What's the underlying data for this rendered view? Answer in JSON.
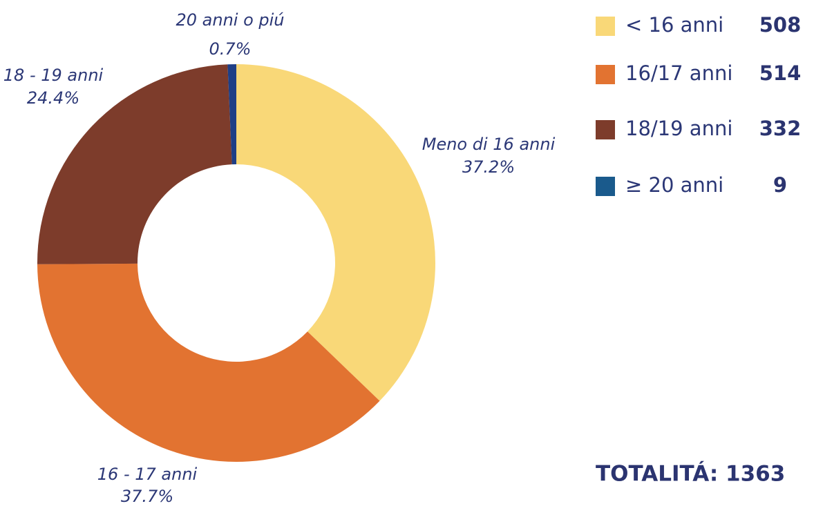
{
  "chart_data": {
    "type": "pie",
    "donut": true,
    "categories": [
      "Meno di 16 anni",
      "16 - 17 anni",
      "18 - 19 anni",
      "20 anni o piú"
    ],
    "values": [
      37.2,
      37.7,
      24.4,
      0.7
    ],
    "value_labels": [
      "37.2%",
      "37.7%",
      "24.4%",
      "0.7%"
    ],
    "colors": [
      "#f9d878",
      "#e27331",
      "#7d3c2b",
      "#1f3f86"
    ],
    "legend": [
      {
        "name": "< 16 anni",
        "color": "#f9d878",
        "count": "508"
      },
      {
        "name": "16/17 anni",
        "color": "#e27331",
        "count": "514"
      },
      {
        "name": "18/19 anni",
        "color": "#7d3c2b",
        "count": "332"
      },
      {
        "name": "≥ 20 anni",
        "color": "#1a5a8c",
        "count": "9"
      }
    ],
    "total": "TOTALITÁ: 1363"
  }
}
